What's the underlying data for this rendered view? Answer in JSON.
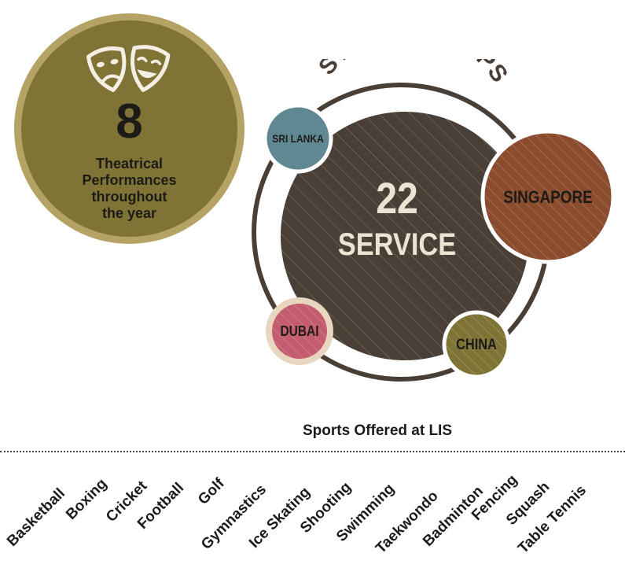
{
  "theatre": {
    "number": "8",
    "text_lines": [
      "Theatrical",
      "Performances",
      "throughout",
      "the year"
    ],
    "icon": "theatre-masks-icon"
  },
  "trips": {
    "title": "STUDENT TRIPS",
    "number": "22",
    "label": "SERVICE",
    "destinations": {
      "sri_lanka": "SRI LANKA",
      "singapore": "SINGAPORE",
      "dubai": "DUBAI",
      "china": "CHINA"
    },
    "colors": {
      "main": "#4a3f36",
      "sri_lanka": "#5f8893",
      "singapore": "#8b4c2e",
      "dubai": "#c25c6e",
      "china": "#7f7436",
      "olive_ring": "#b5a365"
    }
  },
  "sports": {
    "title": "Sports Offered at LIS",
    "items": [
      "Basketball",
      "Boxing",
      "Cricket",
      "Football",
      "Golf",
      "Gymnastics",
      "Ice Skating",
      "Shooting",
      "Swimming",
      "Taekwondo",
      "Badminton",
      "Fencing",
      "Squash",
      "Table Tennis"
    ]
  }
}
